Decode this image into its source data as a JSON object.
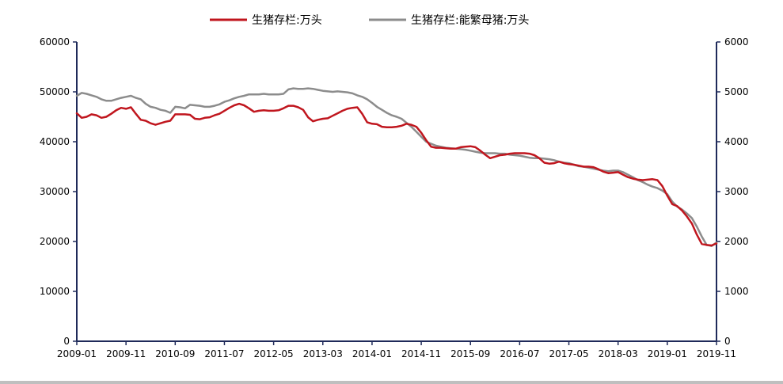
{
  "chart_data": {
    "type": "line",
    "title": "",
    "xlabel": "",
    "ylabel": "",
    "ylim_left": [
      0,
      60000
    ],
    "ylim_right": [
      0,
      6000
    ],
    "grid": false,
    "legend_position": "top",
    "left_ticks": [
      "0",
      "10000",
      "20000",
      "30000",
      "40000",
      "50000",
      "60000"
    ],
    "right_ticks": [
      "0",
      "1000",
      "2000",
      "3000",
      "4000",
      "5000",
      "6000"
    ],
    "x_ticks": [
      "2009-01",
      "2009-11",
      "2010-09",
      "2011-07",
      "2012-05",
      "2013-03",
      "2014-01",
      "2014-11",
      "2015-09",
      "2016-07",
      "2017-05",
      "2018-03",
      "2019-01",
      "2019-11"
    ],
    "x_start": "2009-01",
    "colors": {
      "series_1": "#c0161e",
      "series_2": "#8c8c8c",
      "axis": "#1f2a5a"
    },
    "series": [
      {
        "name": "生猪存栏:万头",
        "axis": "left",
        "values": [
          45700,
          44800,
          45000,
          45500,
          45300,
          44800,
          45000,
          45600,
          46300,
          46800,
          46600,
          46900,
          45600,
          44400,
          44200,
          43700,
          43400,
          43700,
          44000,
          44200,
          45500,
          45500,
          45500,
          45400,
          44600,
          44500,
          44800,
          44900,
          45300,
          45600,
          46200,
          46800,
          47300,
          47600,
          47300,
          46700,
          46000,
          46200,
          46300,
          46200,
          46200,
          46300,
          46700,
          47200,
          47200,
          46900,
          46400,
          44900,
          44100,
          44400,
          44600,
          44700,
          45200,
          45700,
          46200,
          46600,
          46800,
          46900,
          45600,
          43900,
          43600,
          43500,
          43000,
          42900,
          42900,
          43000,
          43200,
          43600,
          43400,
          43000,
          41800,
          40300,
          39000,
          38800,
          38800,
          38700,
          38600,
          38600,
          38900,
          39000,
          39100,
          38900,
          38200,
          37400,
          36700,
          37000,
          37300,
          37400,
          37600,
          37700,
          37700,
          37700,
          37600,
          37300,
          36700,
          35800,
          35600,
          35700,
          36000,
          35700,
          35500,
          35400,
          35200,
          35000,
          35000,
          34900,
          34500,
          34000,
          33700,
          33800,
          33900,
          33400,
          32900,
          32600,
          32400,
          32300,
          32400,
          32500,
          32300,
          31100,
          29200,
          27500,
          27100,
          26200,
          25000,
          23600,
          21400,
          19500,
          19300,
          19200,
          19600
        ]
      },
      {
        "name": "生猪存栏:能繁母猪:万头",
        "axis": "right",
        "values": [
          4920,
          4980,
          4960,
          4930,
          4900,
          4850,
          4820,
          4820,
          4850,
          4880,
          4900,
          4920,
          4880,
          4850,
          4760,
          4700,
          4680,
          4640,
          4620,
          4580,
          4700,
          4690,
          4670,
          4740,
          4730,
          4720,
          4700,
          4700,
          4720,
          4750,
          4800,
          4830,
          4870,
          4900,
          4920,
          4950,
          4950,
          4950,
          4960,
          4950,
          4950,
          4950,
          4960,
          5050,
          5070,
          5060,
          5060,
          5070,
          5060,
          5040,
          5020,
          5010,
          5000,
          5010,
          5000,
          4990,
          4970,
          4930,
          4900,
          4850,
          4780,
          4700,
          4640,
          4580,
          4530,
          4500,
          4460,
          4380,
          4300,
          4200,
          4100,
          4000,
          3960,
          3920,
          3900,
          3880,
          3870,
          3860,
          3850,
          3840,
          3820,
          3800,
          3780,
          3770,
          3770,
          3770,
          3760,
          3760,
          3740,
          3730,
          3720,
          3700,
          3680,
          3670,
          3670,
          3660,
          3650,
          3630,
          3600,
          3580,
          3570,
          3540,
          3510,
          3500,
          3480,
          3460,
          3440,
          3420,
          3410,
          3420,
          3420,
          3390,
          3340,
          3290,
          3230,
          3190,
          3140,
          3100,
          3070,
          3020,
          2950,
          2800,
          2700,
          2640,
          2560,
          2470,
          2300,
          2100,
          1930,
          1910,
          1980
        ]
      }
    ]
  }
}
